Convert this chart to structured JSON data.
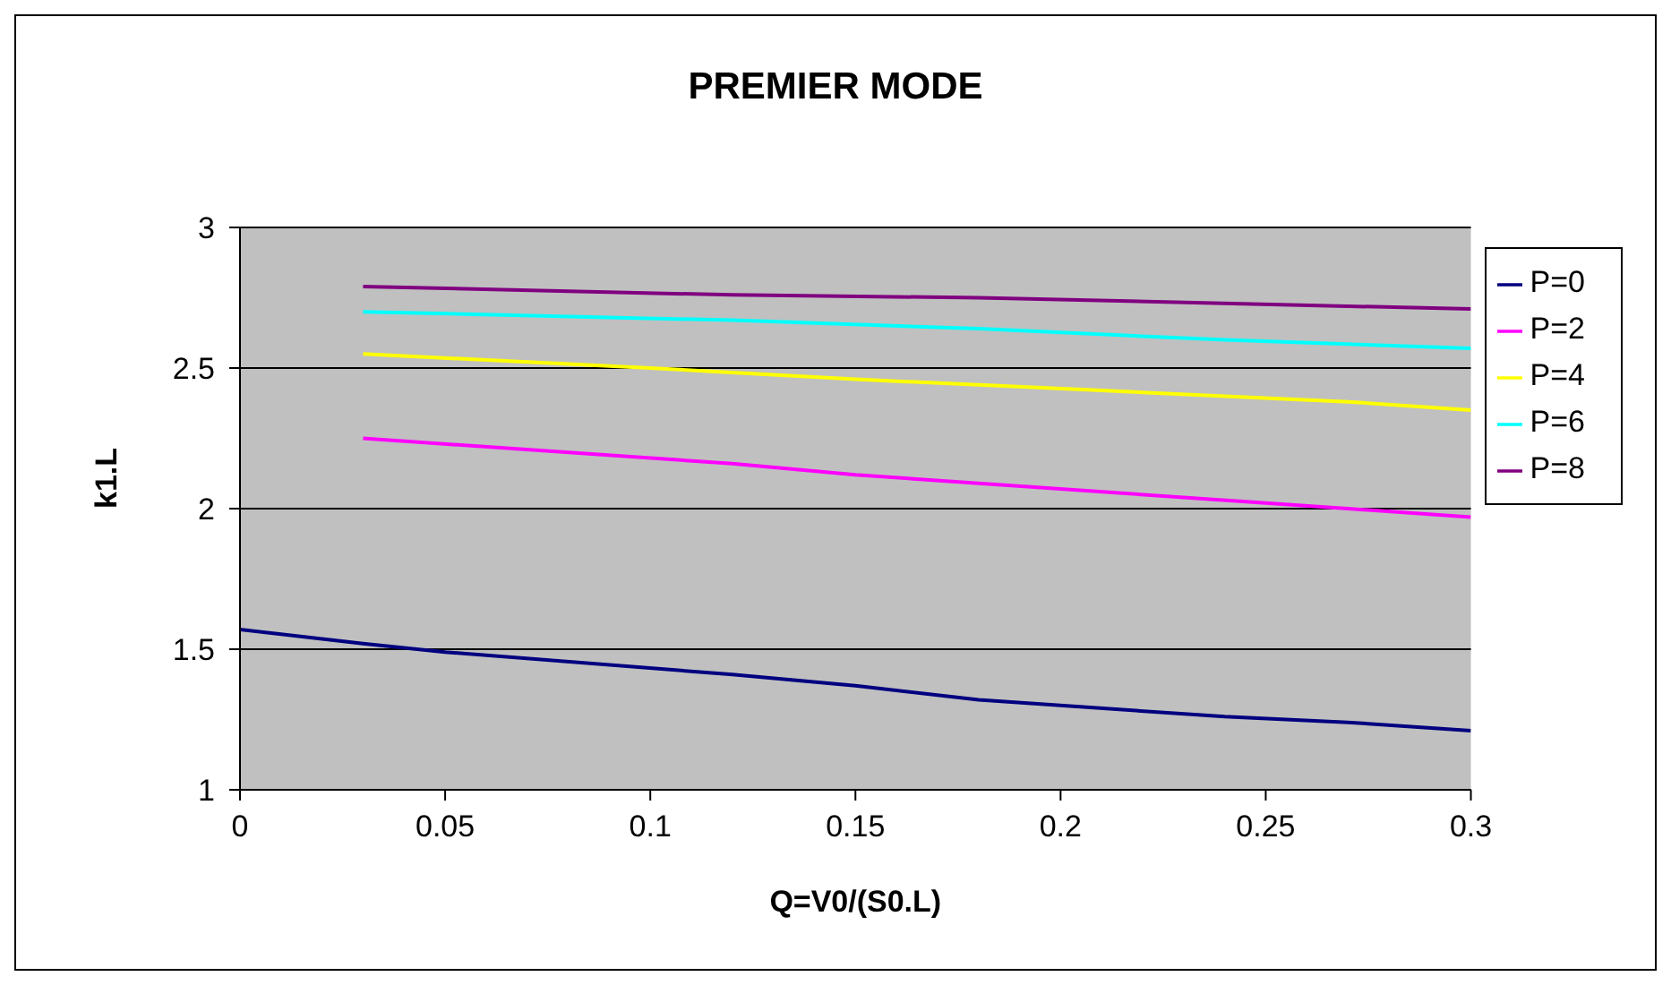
{
  "chart_data": {
    "type": "line",
    "title": "PREMIER MODE",
    "xlabel": "Q=V0/(S0.L)",
    "ylabel": "k1.L",
    "xlim": [
      0,
      0.3
    ],
    "xticks": [
      0,
      0.05,
      0.1,
      0.15,
      0.2,
      0.25,
      0.3
    ],
    "ylim": [
      1,
      3
    ],
    "yticks": [
      1,
      1.5,
      2,
      2.5,
      3
    ],
    "grid": "y",
    "legend": "right",
    "marker": "none",
    "line_style": "solid",
    "series": [
      {
        "name": "P=0",
        "color": "#000080",
        "x": [
          0,
          0.03,
          0.05,
          0.12,
          0.15,
          0.18,
          0.24,
          0.27,
          0.3
        ],
        "values": [
          1.57,
          1.52,
          1.49,
          1.41,
          1.37,
          1.32,
          1.26,
          1.24,
          1.21
        ]
      },
      {
        "name": "P=2",
        "color": "#ff00ff",
        "x": [
          0.03,
          0.12,
          0.15,
          0.18,
          0.27,
          0.3
        ],
        "values": [
          2.25,
          2.16,
          2.12,
          2.09,
          2.0,
          1.97
        ]
      },
      {
        "name": "P=4",
        "color": "#ffff00",
        "x": [
          0.03,
          0.1,
          0.15,
          0.21,
          0.27,
          0.3
        ],
        "values": [
          2.55,
          2.5,
          2.46,
          2.42,
          2.38,
          2.35
        ]
      },
      {
        "name": "P=6",
        "color": "#00ffff",
        "x": [
          0.03,
          0.12,
          0.18,
          0.24,
          0.3
        ],
        "values": [
          2.7,
          2.67,
          2.64,
          2.6,
          2.57
        ]
      },
      {
        "name": "P=8",
        "color": "#800080",
        "x": [
          0.03,
          0.12,
          0.18,
          0.3
        ],
        "values": [
          2.79,
          2.76,
          2.75,
          2.71
        ]
      }
    ]
  }
}
